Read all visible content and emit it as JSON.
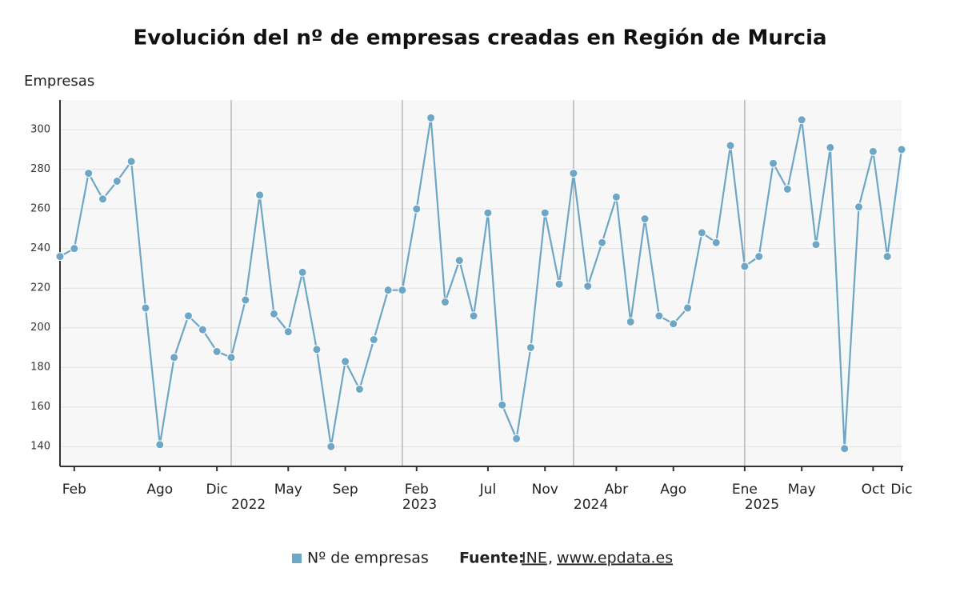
{
  "chart_data": {
    "type": "line",
    "title": "Evolución del nº de empresas creadas en Región de Murcia",
    "y_axis_label": "Empresas",
    "categories": [
      null,
      "Feb",
      null,
      null,
      null,
      null,
      null,
      "Ago",
      null,
      null,
      null,
      "Dic",
      null,
      null,
      null,
      null,
      "May",
      null,
      null,
      null,
      "Sep",
      null,
      null,
      null,
      null,
      "Feb",
      null,
      null,
      null,
      null,
      "Jul",
      null,
      null,
      null,
      "Nov",
      null,
      null,
      null,
      null,
      "Abr",
      null,
      null,
      null,
      "Ago",
      null,
      null,
      null,
      null,
      "Ene",
      null,
      null,
      null,
      "May",
      null,
      null,
      null,
      null,
      "Oct",
      null,
      "Dic"
    ],
    "year_ticks": [
      {
        "value": 12,
        "label": "2022"
      },
      {
        "value": 24,
        "label": "2023"
      },
      {
        "value": 36,
        "label": "2024"
      },
      {
        "value": 48,
        "label": "2025"
      }
    ],
    "series": [
      {
        "name": "Nº de empresas",
        "color": "#6ea6c6",
        "values": [
          236,
          240,
          278,
          265,
          274,
          284,
          210,
          141,
          185,
          206,
          199,
          188,
          185,
          214,
          267,
          207,
          198,
          228,
          189,
          140,
          183,
          169,
          194,
          219,
          219,
          260,
          306,
          213,
          234,
          206,
          258,
          161,
          144,
          190,
          258,
          222,
          278,
          221,
          243,
          266,
          203,
          255,
          206,
          202,
          210,
          248,
          243,
          292,
          231,
          236,
          283,
          270,
          305,
          242,
          291,
          139,
          261,
          289,
          236,
          290
        ]
      }
    ],
    "ylim": [
      130,
      315
    ],
    "yticks": [
      140,
      160,
      180,
      200,
      220,
      240,
      260,
      280,
      300
    ],
    "grid": true,
    "source": {
      "label": "Fuente:",
      "links": [
        "INE",
        "www.epdata.es"
      ],
      "separator": ","
    }
  }
}
